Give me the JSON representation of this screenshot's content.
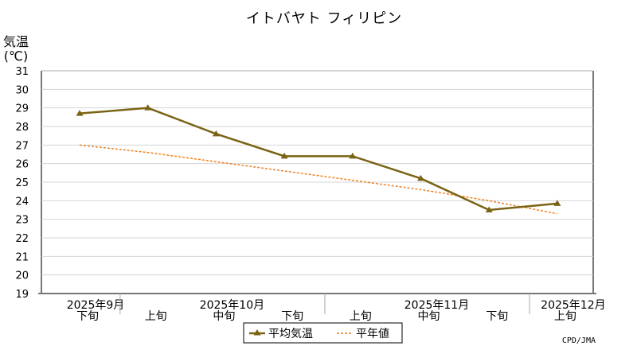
{
  "chart_data": {
    "type": "line",
    "title": "イトバヤト フィリピン",
    "ylabel_line1": "気温",
    "ylabel_line2": "(℃)",
    "ylim": [
      19,
      31
    ],
    "yticks": [
      19,
      20,
      21,
      22,
      23,
      24,
      25,
      26,
      27,
      28,
      29,
      30,
      31
    ],
    "categories": [
      "下旬",
      "上旬",
      "中旬",
      "下旬",
      "上旬",
      "中旬",
      "下旬",
      "上旬"
    ],
    "month_labels": [
      {
        "label": "2025年9月",
        "start": 0,
        "end": 0
      },
      {
        "label": "2025年10月",
        "start": 1,
        "end": 3
      },
      {
        "label": "2025年11月",
        "start": 4,
        "end": 6
      },
      {
        "label": "2025年12月",
        "start": 7,
        "end": 7
      }
    ],
    "series": [
      {
        "name": "平均気温",
        "color": "#7a6414",
        "style": "solid-triangle",
        "values": [
          28.7,
          29.0,
          27.6,
          26.4,
          26.4,
          25.2,
          23.5,
          23.85
        ]
      },
      {
        "name": "平年値",
        "color": "#f08020",
        "style": "dashed",
        "values": [
          27.0,
          26.6,
          26.1,
          25.6,
          25.1,
          24.6,
          24.0,
          23.3
        ]
      }
    ],
    "grid": true,
    "legend_position": "bottom-center",
    "credit": "CPD/JMA"
  }
}
